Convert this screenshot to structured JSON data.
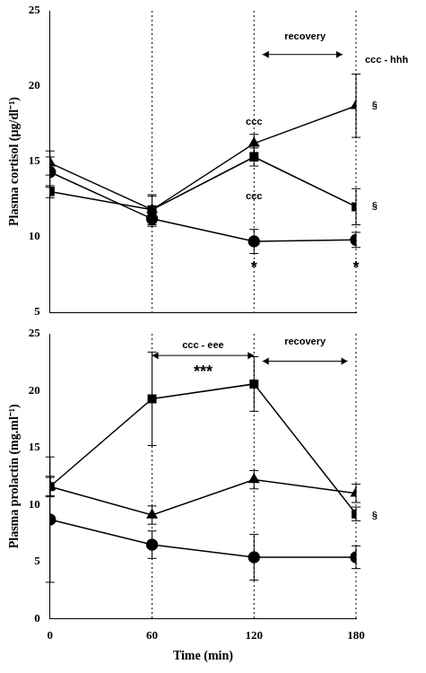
{
  "chart_data": [
    {
      "type": "line",
      "y_label": "Plasma cortisol (µg/dl⁻¹)",
      "x": [
        0,
        60,
        120,
        180
      ],
      "xlim": [
        0,
        180
      ],
      "xticks": [
        0,
        60,
        120,
        180
      ],
      "ylim": [
        5,
        25
      ],
      "yticks": [
        5,
        10,
        15,
        20,
        25
      ],
      "grid": true,
      "tick_labels": "y",
      "series": [
        {
          "color": "#000000",
          "marker": "triangle",
          "values": [
            14.9,
            11.8,
            16.2,
            18.7
          ],
          "errors": [
            0.8,
            0.9,
            0.6,
            2.1
          ]
        },
        {
          "color": "#000000",
          "marker": "square",
          "values": [
            13.0,
            11.8,
            15.3,
            12.0
          ],
          "errors": [
            0.4,
            1.0,
            0.6,
            1.2
          ]
        },
        {
          "color": "#000000",
          "marker": "circle",
          "values": [
            14.3,
            11.2,
            9.7,
            9.8
          ],
          "errors": [
            1.0,
            0.5,
            0.8,
            0.5
          ]
        }
      ],
      "annotations": [
        {
          "text": "recovery",
          "x": 150,
          "y": 23.3
        },
        {
          "text": "ccc - hhh",
          "x": 198,
          "y": 21.7
        },
        {
          "text": "§",
          "x": 191,
          "y": 18.7
        },
        {
          "text": "§",
          "x": 191,
          "y": 12.0
        },
        {
          "text": "ccc",
          "x": 120,
          "y": 17.6
        },
        {
          "text": "ccc",
          "x": 120,
          "y": 12.7
        },
        {
          "text": "*",
          "x": 120,
          "y": 7.9
        },
        {
          "text": "*",
          "x": 180,
          "y": 7.9
        }
      ],
      "arrows": [
        {
          "x0": 125,
          "x1": 172,
          "y": 22.1
        }
      ]
    },
    {
      "type": "line",
      "y_label": "Plasma prolactin (mg.ml⁻¹)",
      "x_label": "Time (min)",
      "x": [
        0,
        60,
        120,
        180
      ],
      "xlim": [
        0,
        180
      ],
      "xticks": [
        0,
        60,
        120,
        180
      ],
      "ylim": [
        0,
        25
      ],
      "yticks": [
        0,
        5,
        10,
        15,
        20,
        25
      ],
      "grid": true,
      "series": [
        {
          "color": "#000000",
          "marker": "square",
          "values": [
            11.6,
            19.3,
            20.6,
            9.2
          ],
          "errors": [
            0.8,
            4.1,
            2.4,
            0.6
          ]
        },
        {
          "color": "#000000",
          "marker": "triangle",
          "values": [
            11.6,
            9.1,
            12.2,
            11.0
          ],
          "errors": [
            0.9,
            0.8,
            0.8,
            0.8
          ]
        },
        {
          "color": "#000000",
          "marker": "circle",
          "values": [
            8.7,
            6.5,
            5.4,
            5.4
          ],
          "errors": [
            5.5,
            1.2,
            2.0,
            1.0
          ]
        }
      ],
      "annotations": [
        {
          "text": "ccc - eee",
          "x": 90,
          "y": 24.0
        },
        {
          "text": "***",
          "x": 90,
          "y": 21.6
        },
        {
          "text": "recovery",
          "x": 150,
          "y": 24.3
        },
        {
          "text": "§",
          "x": 191,
          "y": 9.0
        }
      ],
      "arrows": [
        {
          "x0": 60,
          "x1": 120,
          "y": 23.1
        },
        {
          "x0": 125,
          "x1": 175,
          "y": 22.6
        }
      ]
    }
  ]
}
